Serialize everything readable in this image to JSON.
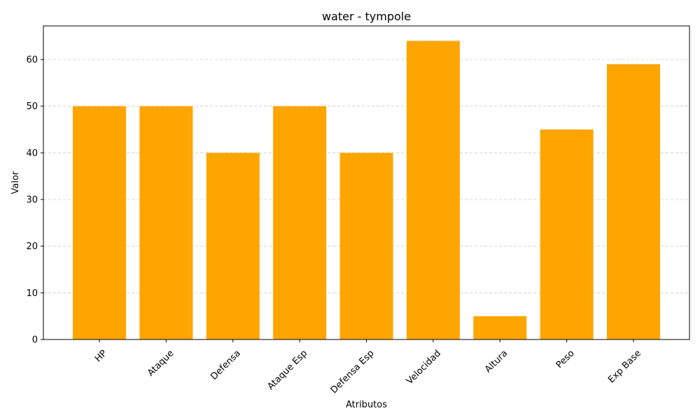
{
  "chart_data": {
    "type": "bar",
    "title": "water - tympole",
    "xlabel": "Atributos",
    "ylabel": "Valor",
    "categories": [
      "HP",
      "Ataque",
      "Defensa",
      "Ataque Esp",
      "Defensa Esp",
      "Velocidad",
      "Altura",
      "Peso",
      "Exp Base"
    ],
    "values": [
      50,
      50,
      40,
      50,
      40,
      64,
      5,
      45,
      59
    ],
    "ylim": [
      0,
      67.2
    ],
    "yticks": [
      0,
      10,
      20,
      30,
      40,
      50,
      60
    ],
    "grid": {
      "axis": "y",
      "style": "dashed"
    },
    "bar_color": "#FFA500",
    "grid_color": "#cccccc"
  }
}
